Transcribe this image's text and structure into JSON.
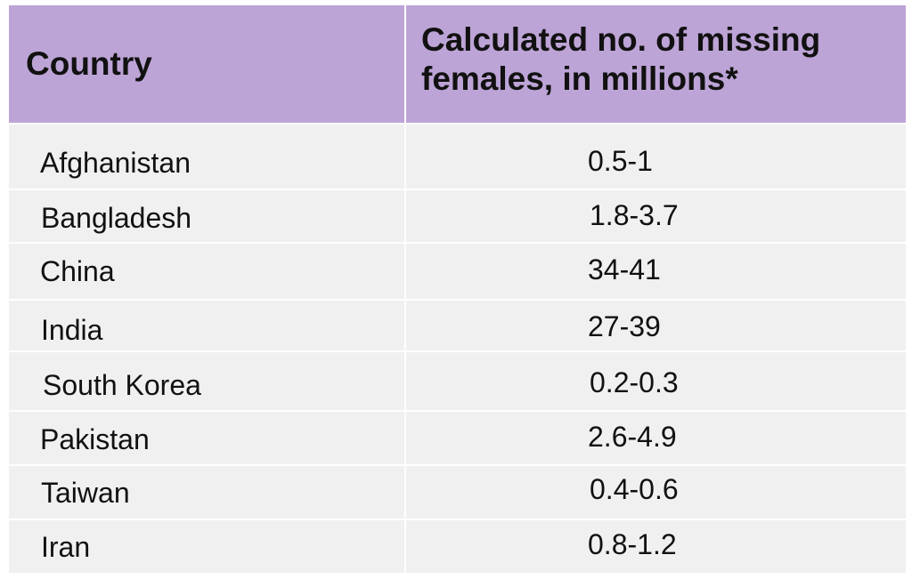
{
  "header": {
    "country": "Country",
    "missing_females": "Calculated no. of missing females, in millions*"
  },
  "rows": [
    {
      "country": "Afghanistan",
      "value": "0.5-1"
    },
    {
      "country": "Bangladesh",
      "value": "1.8-3.7"
    },
    {
      "country": "China",
      "value": "34-41"
    },
    {
      "country": "India",
      "value": "27-39"
    },
    {
      "country": "South Korea",
      "value": "0.2-0.3"
    },
    {
      "country": "Pakistan",
      "value": "2.6-4.9"
    },
    {
      "country": "Taiwan",
      "value": "0.4-0.6"
    },
    {
      "country": "Iran",
      "value": "0.8-1.2"
    }
  ],
  "colors": {
    "header_background": "#bda4d6",
    "body_background": "#f0f0f0",
    "divider": "#ffffff",
    "text": "#111111"
  }
}
